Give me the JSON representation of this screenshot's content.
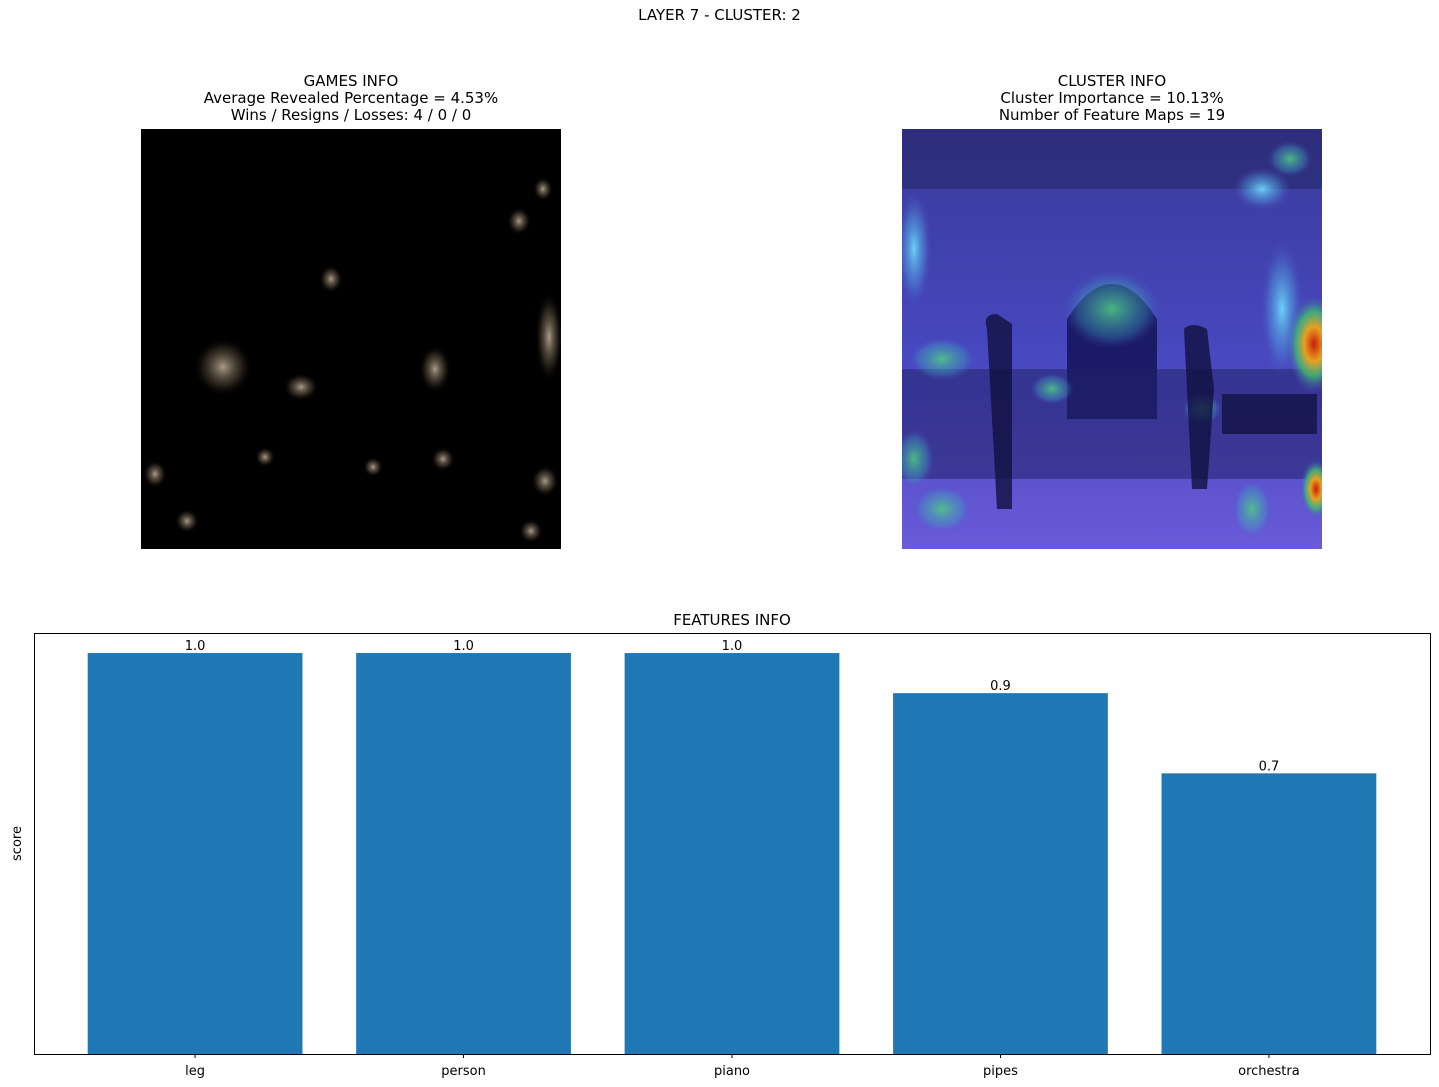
{
  "suptitle": "LAYER 7 - CLUSTER: 2",
  "games_panel": {
    "title": "GAMES INFO",
    "line1": "Average Revealed Percentage = 4.53%",
    "line2": "Wins / Resigns / Losses: 4 / 0 / 0"
  },
  "cluster_panel": {
    "title": "CLUSTER INFO",
    "line1": "Cluster Importance = 10.13%",
    "line2": "Number of Feature Maps = 19"
  },
  "chart_data": {
    "type": "bar",
    "title": "FEATURES INFO",
    "xlabel": "",
    "ylabel": "score",
    "categories": [
      "leg",
      "person",
      "piano",
      "pipes",
      "orchestra"
    ],
    "values": [
      1.0,
      1.0,
      1.0,
      0.9,
      0.7
    ],
    "data_labels": [
      "1.0",
      "1.0",
      "1.0",
      "0.9",
      "0.7"
    ],
    "ylim": [
      0,
      1.05
    ],
    "y_ticks_visible": false,
    "grid": false,
    "legend": "none",
    "bar_color": "#1f77b4"
  }
}
